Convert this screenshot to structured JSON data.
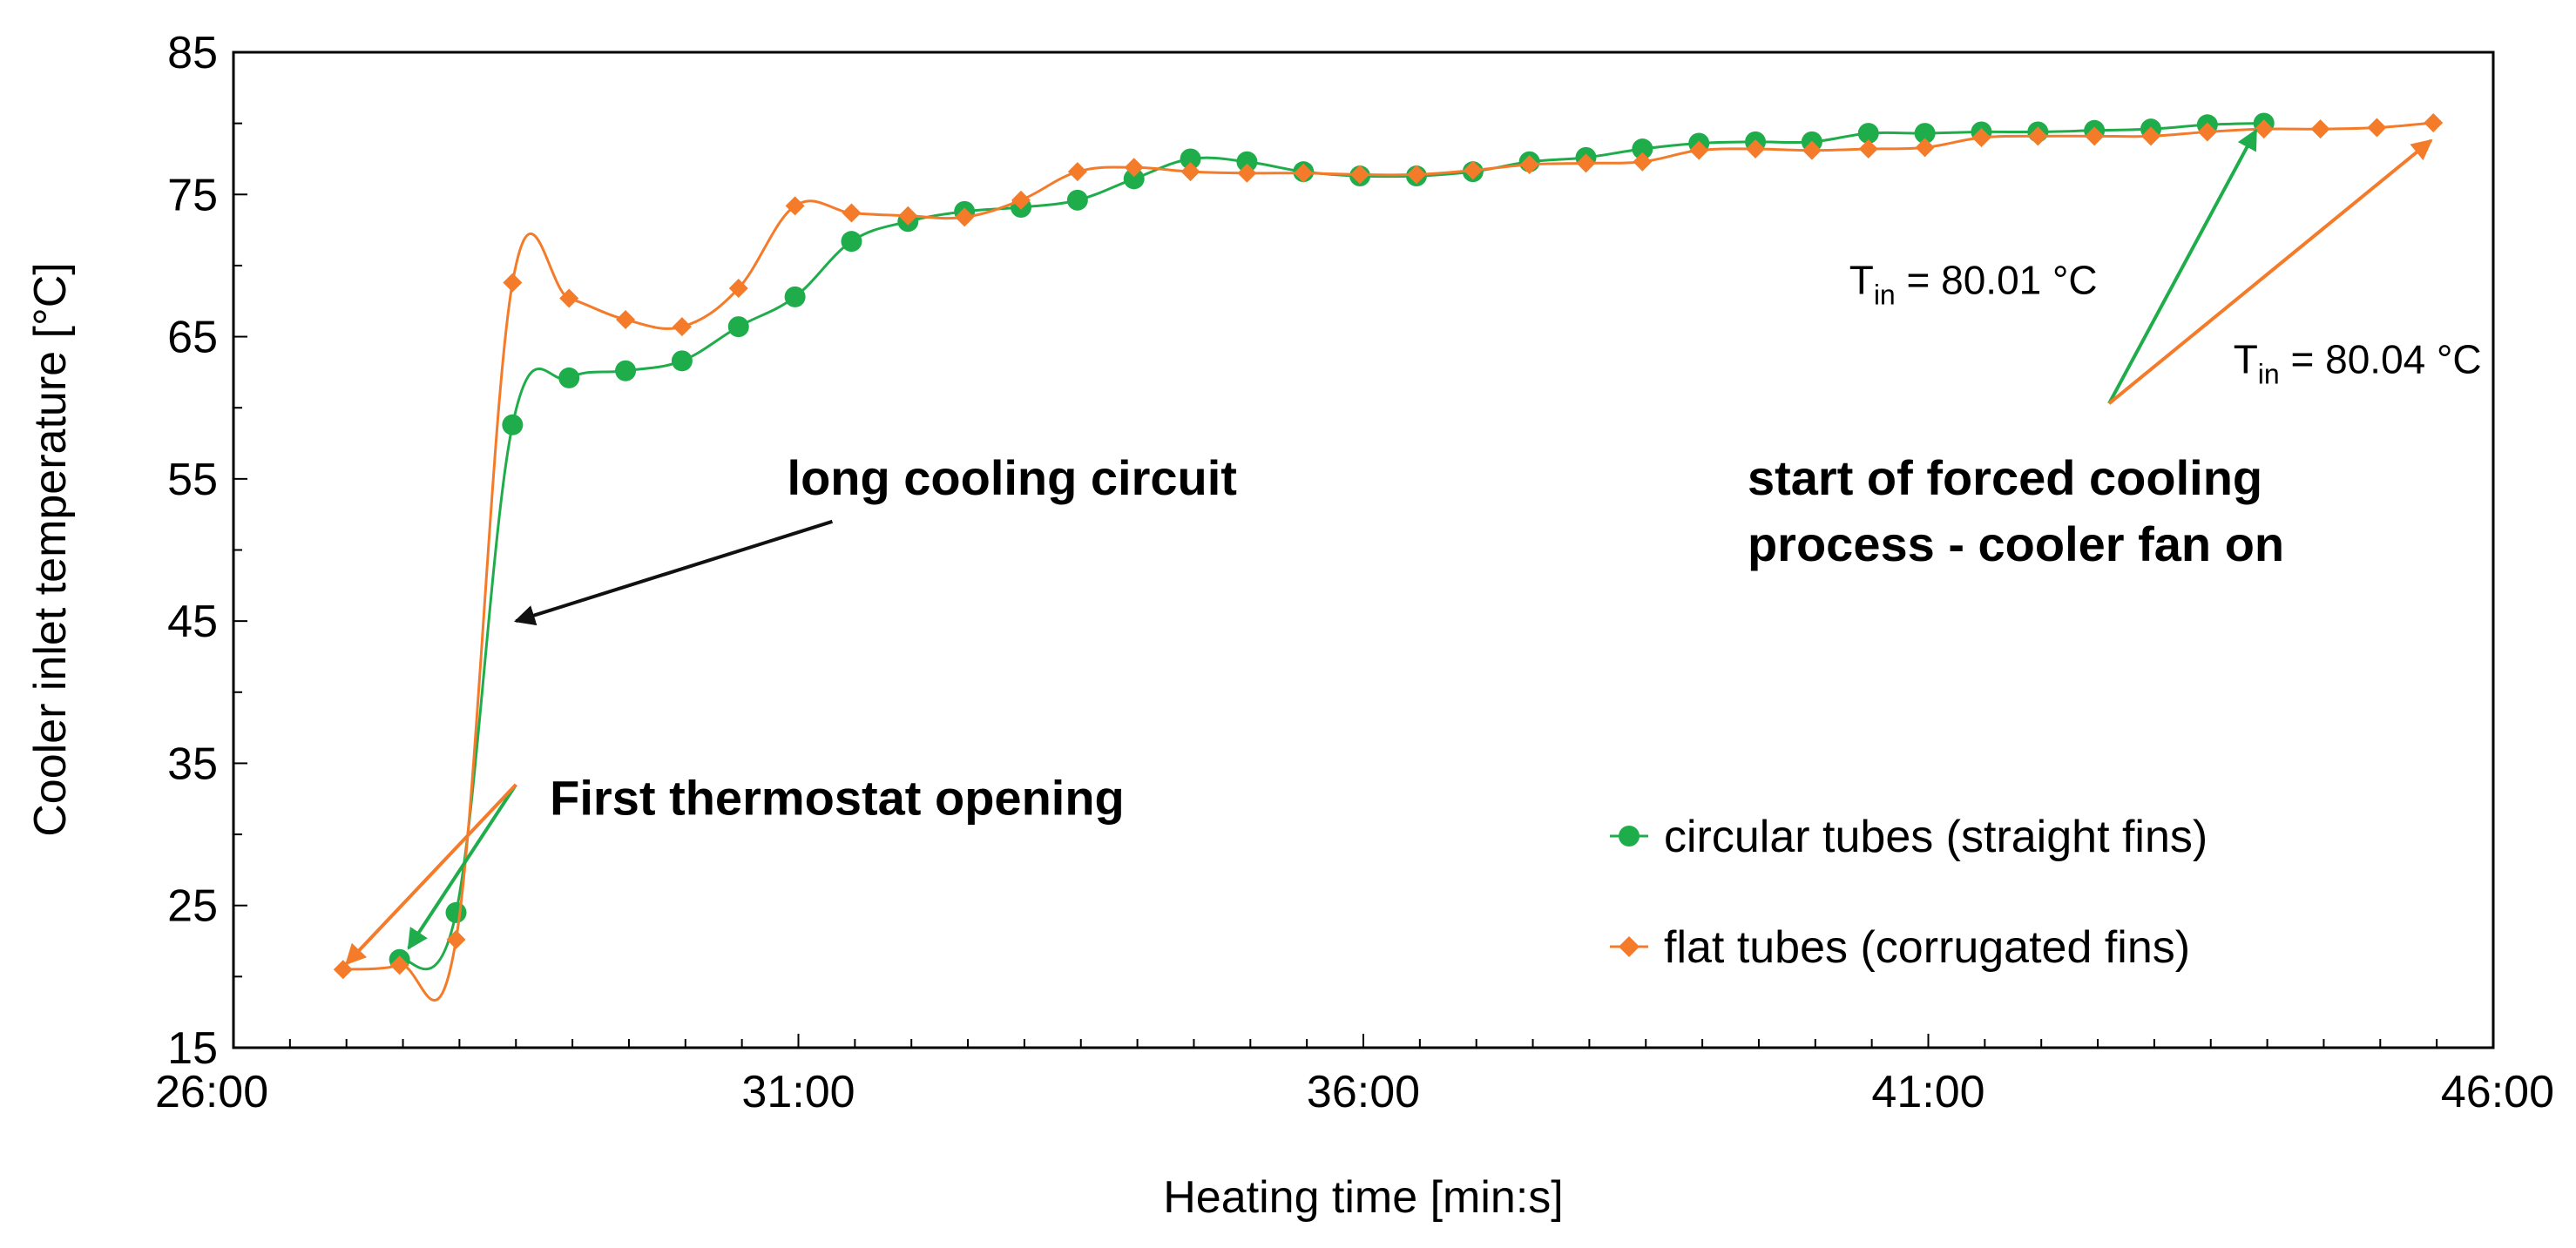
{
  "chart_data": {
    "type": "line",
    "title": "",
    "xlabel": "Heating time [min:s]",
    "ylabel": "Cooler inlet temperature [°C]",
    "xlim": [
      26,
      46
    ],
    "ylim": [
      15,
      85
    ],
    "x_ticks": [
      {
        "value": 26,
        "label": "26:00"
      },
      {
        "value": 31,
        "label": "31:00"
      },
      {
        "value": 36,
        "label": "36:00"
      },
      {
        "value": 41,
        "label": "41:00"
      },
      {
        "value": 46,
        "label": "46:00"
      }
    ],
    "y_ticks": [
      {
        "value": 15,
        "label": "15"
      },
      {
        "value": 25,
        "label": "25"
      },
      {
        "value": 35,
        "label": "35"
      },
      {
        "value": 45,
        "label": "45"
      },
      {
        "value": 55,
        "label": "55"
      },
      {
        "value": 65,
        "label": "65"
      },
      {
        "value": 75,
        "label": "75"
      },
      {
        "value": 85,
        "label": "85"
      }
    ],
    "x_minor_step": 0.5,
    "y_minor_step": 5,
    "series": [
      {
        "name": "circular tubes (straight fins)",
        "color": "#1fad4b",
        "marker": "circle",
        "x": [
          27.47,
          27.97,
          28.47,
          28.97,
          29.47,
          29.97,
          30.47,
          30.97,
          31.47,
          31.97,
          32.47,
          32.97,
          33.47,
          33.97,
          34.47,
          34.97,
          35.47,
          35.97,
          36.47,
          36.97,
          37.47,
          37.97,
          38.47,
          38.97,
          39.47,
          39.97,
          40.47,
          40.97,
          41.47,
          41.97,
          42.47,
          42.97,
          43.47,
          43.97
        ],
        "y": [
          21.2,
          24.5,
          58.8,
          62.1,
          62.6,
          63.3,
          65.7,
          67.8,
          71.7,
          73.1,
          73.8,
          74.1,
          74.6,
          76.1,
          77.5,
          77.3,
          76.6,
          76.3,
          76.3,
          76.6,
          77.3,
          77.6,
          78.2,
          78.6,
          78.7,
          78.7,
          79.3,
          79.3,
          79.4,
          79.4,
          79.5,
          79.6,
          79.9,
          80.01
        ]
      },
      {
        "name": "flat tubes (corrugated fins)",
        "color": "#f47b2a",
        "marker": "diamond",
        "x": [
          26.97,
          27.47,
          27.97,
          28.47,
          28.97,
          29.47,
          29.97,
          30.47,
          30.97,
          31.47,
          31.97,
          32.47,
          32.97,
          33.47,
          33.97,
          34.47,
          34.97,
          35.47,
          35.97,
          36.47,
          36.97,
          37.47,
          37.97,
          38.47,
          38.97,
          39.47,
          39.97,
          40.47,
          40.97,
          41.47,
          41.97,
          42.47,
          42.97,
          43.47,
          43.97,
          44.47,
          44.97,
          45.47
        ],
        "y": [
          20.5,
          20.8,
          22.6,
          68.8,
          67.7,
          66.2,
          65.7,
          68.4,
          74.2,
          73.7,
          73.5,
          73.4,
          74.6,
          76.6,
          76.9,
          76.6,
          76.5,
          76.5,
          76.4,
          76.4,
          76.7,
          77.1,
          77.2,
          77.3,
          78.1,
          78.2,
          78.1,
          78.2,
          78.3,
          79.0,
          79.1,
          79.1,
          79.1,
          79.4,
          79.6,
          79.6,
          79.7,
          80.04
        ]
      }
    ],
    "legend_position": "bottom-right",
    "annotations": [
      {
        "id": "long_cooling",
        "text": "long cooling circuit",
        "bold": true,
        "arrow_color": "#111111",
        "arrow_from": [
          31.3,
          52.0
        ],
        "arrow_to": [
          28.5,
          45.0
        ],
        "text_at": [
          30.9,
          55.0
        ]
      },
      {
        "id": "first_thermostat",
        "text": "First thermostat opening",
        "bold": true,
        "arrows": [
          {
            "color": "#1fad4b",
            "from": [
              28.5,
              33.5
            ],
            "to": [
              27.55,
              22.0
            ]
          },
          {
            "color": "#f47b2a",
            "from": [
              28.5,
              33.5
            ],
            "to": [
              27.0,
              20.9
            ]
          }
        ],
        "text_at": [
          28.8,
          32.5
        ]
      },
      {
        "id": "forced_cooling",
        "text_line1": "start of forced cooling",
        "text_line2": "process - cooler fan on",
        "bold": true,
        "arrows": [
          {
            "color": "#1fad4b",
            "from": [
              42.6,
              60.3
            ],
            "to": [
              43.9,
              79.5
            ]
          },
          {
            "color": "#f47b2a",
            "from": [
              42.6,
              60.3
            ],
            "to": [
              45.45,
              78.8
            ]
          }
        ],
        "text_at": [
          39.4,
          55.0
        ]
      },
      {
        "id": "tin_circular",
        "text_main": "T",
        "text_sub": "in",
        "text_value": " = 80.01 °C",
        "text_at": [
          40.3,
          69.0
        ]
      },
      {
        "id": "tin_flat",
        "text_main": "T",
        "text_sub": "in",
        "text_value": " = 80.04 °C",
        "text_at": [
          43.7,
          63.4
        ]
      }
    ]
  }
}
